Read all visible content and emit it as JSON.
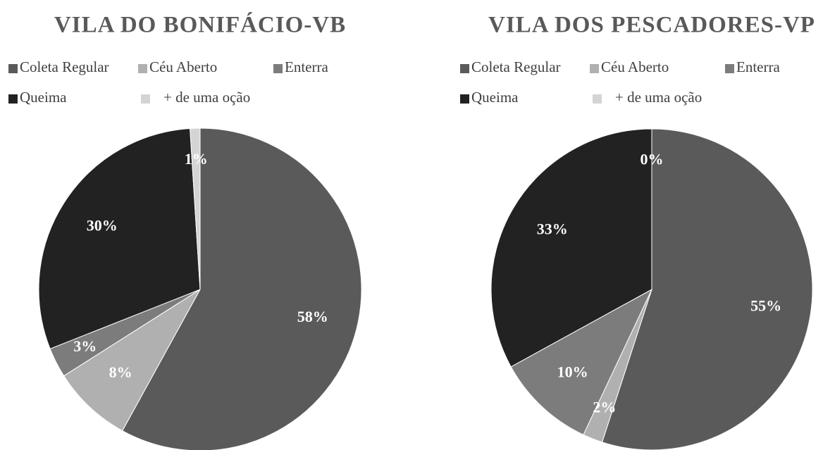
{
  "chart_data": [
    {
      "type": "pie",
      "title": "VILA DO BONIFÁCIO-VB",
      "categories": [
        "Coleta Regular",
        "Céu Aberto",
        "Enterra",
        "Queima",
        "+ de uma oção"
      ],
      "values": [
        58,
        8,
        3,
        30,
        1
      ],
      "value_labels": [
        "58%",
        "8%",
        "3%",
        "30%",
        "1%"
      ],
      "colors": [
        "#5a5a5a",
        "#b0b0b0",
        "#7c7c7c",
        "#222222",
        "#d4d4d4"
      ]
    },
    {
      "type": "pie",
      "title": "VILA DOS PESCADORES-VP",
      "categories": [
        "Coleta Regular",
        "Céu Aberto",
        "Enterra",
        "Queima",
        "+ de uma oção"
      ],
      "values": [
        55,
        2,
        10,
        33,
        0
      ],
      "value_labels": [
        "55%",
        "2%",
        "10%",
        "33%",
        "0%"
      ],
      "colors": [
        "#5a5a5a",
        "#b0b0b0",
        "#7c7c7c",
        "#222222",
        "#d4d4d4"
      ]
    }
  ]
}
